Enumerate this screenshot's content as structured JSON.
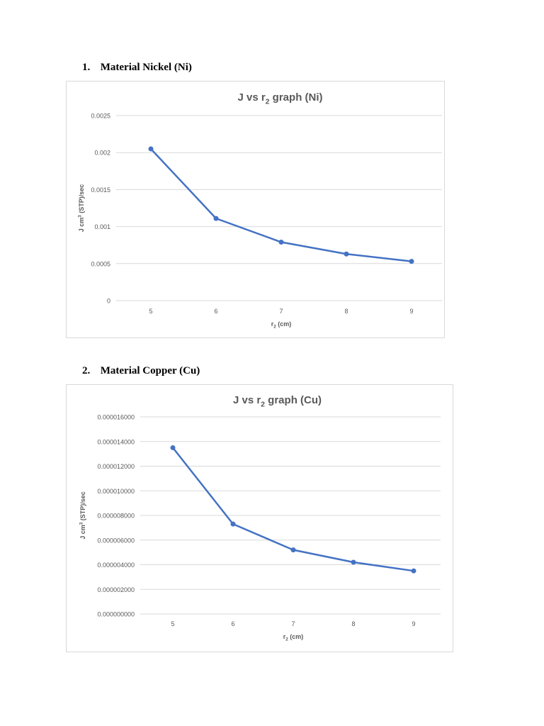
{
  "sections": [
    {
      "number": "1.",
      "label": "Material Nickel (Ni)"
    },
    {
      "number": "2.",
      "label": "Material Copper (Cu)"
    }
  ],
  "colors": {
    "series": "#4472c4",
    "grid": "#d9d9d9",
    "text": "#595959"
  },
  "chart_data": [
    {
      "type": "line",
      "title": "J vs r",
      "title_sub": "2",
      "title_suffix": " graph (Ni)",
      "xlabel": "r",
      "xlabel_sub": "2",
      "xlabel_suffix": " (cm)",
      "ylabel": "J cm",
      "ylabel_sup": "3",
      "ylabel_suffix": " (STP)/sec",
      "x": [
        5,
        6,
        7,
        8,
        9
      ],
      "x_tick_labels": [
        "5",
        "6",
        "7",
        "8",
        "9"
      ],
      "values": [
        0.00205,
        0.00111,
        0.00079,
        0.00063,
        0.00053
      ],
      "ylim": [
        0,
        0.0025
      ],
      "y_ticks": [
        0,
        0.0005,
        0.001,
        0.0015,
        0.002,
        0.0025
      ],
      "y_tick_labels": [
        "0",
        "0.0005",
        "0.001",
        "0.0015",
        "0.002",
        "0.0025"
      ],
      "grid": true,
      "legend": "none"
    },
    {
      "type": "line",
      "title": "J vs r",
      "title_sub": "2",
      "title_suffix": " graph (Cu)",
      "xlabel": "r",
      "xlabel_sub": "2",
      "xlabel_suffix": " (cm)",
      "ylabel": "J cm",
      "ylabel_sup": "3",
      "ylabel_suffix": " (STP)/sec",
      "x": [
        5,
        6,
        7,
        8,
        9
      ],
      "x_tick_labels": [
        "5",
        "6",
        "7",
        "8",
        "9"
      ],
      "values": [
        1.35e-05,
        7.3e-06,
        5.2e-06,
        4.2e-06,
        3.5e-06
      ],
      "ylim": [
        0,
        1.6e-05
      ],
      "y_ticks": [
        0,
        2e-06,
        4e-06,
        6e-06,
        8e-06,
        1e-05,
        1.2e-05,
        1.4e-05,
        1.6e-05
      ],
      "y_tick_labels": [
        "0.000000000",
        "0.000002000",
        "0.000004000",
        "0.000006000",
        "0.000008000",
        "0.000010000",
        "0.000012000",
        "0.000014000",
        "0.000016000"
      ],
      "grid": true,
      "legend": "none"
    }
  ]
}
